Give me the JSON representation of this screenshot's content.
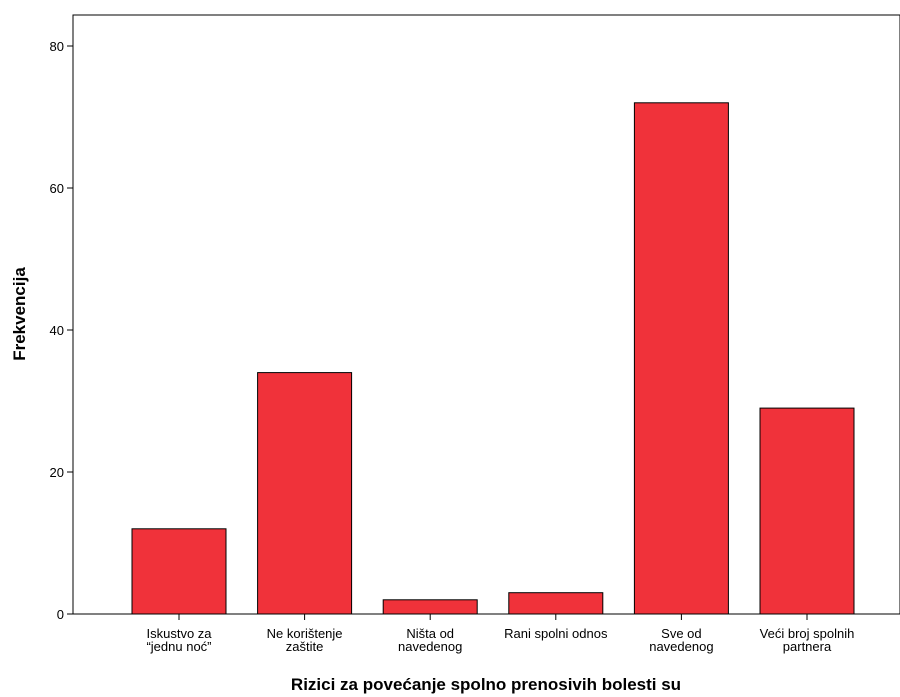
{
  "chart_data": {
    "type": "bar",
    "xlabel": "Rizici za povećanje spolno prenosivih bolesti su",
    "ylabel": "Frekvencija",
    "categories": [
      [
        "Iskustvo za",
        "“jednu noć”"
      ],
      [
        "Ne korištenje",
        "zaštite"
      ],
      [
        "Ništa od",
        "navedenog"
      ],
      [
        "Rani spolni odnos"
      ],
      [
        "Sve od",
        "navedenog"
      ],
      [
        "Veći broj spolnih",
        "partnera"
      ]
    ],
    "values": [
      12,
      34,
      2,
      3,
      72,
      29
    ],
    "ylim": [
      0,
      80
    ],
    "yticks": [
      0,
      20,
      40,
      60,
      80
    ],
    "bar_color": "#F0323A",
    "grid": false
  }
}
